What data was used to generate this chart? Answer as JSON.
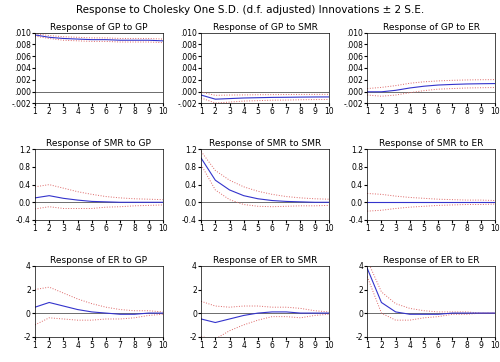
{
  "title": "Response to Cholesky One S.D. (d.f. adjusted) Innovations ± 2 S.E.",
  "titles": [
    [
      "Response of GP to GP",
      "Response of GP to SMR",
      "Response of GP to ER"
    ],
    [
      "Response of SMR to GP",
      "Response of SMR to SMR",
      "Response of SMR to ER"
    ],
    [
      "Response of ER to GP",
      "Response of ER to SMR",
      "Response of ER to ER"
    ]
  ],
  "x": [
    1,
    2,
    3,
    4,
    5,
    6,
    7,
    8,
    9,
    10
  ],
  "gp_to_gp": {
    "y": [
      0.0096,
      0.0092,
      0.009,
      0.0089,
      0.0088,
      0.0088,
      0.0087,
      0.0087,
      0.0087,
      0.0086
    ],
    "yu": [
      0.0098,
      0.0095,
      0.0093,
      0.0092,
      0.0091,
      0.0091,
      0.009,
      0.009,
      0.009,
      0.0089
    ],
    "yl": [
      0.0094,
      0.009,
      0.0087,
      0.0086,
      0.0085,
      0.0085,
      0.0084,
      0.0084,
      0.0084,
      0.0083
    ],
    "ylim": [
      -0.002,
      0.01
    ]
  },
  "gp_to_smr": {
    "y": [
      -0.0006,
      -0.0013,
      -0.0012,
      -0.0011,
      -0.00105,
      -0.001,
      -0.00098,
      -0.00095,
      -0.00093,
      -0.00092
    ],
    "yu": [
      -0.0001,
      -0.00065,
      -0.0006,
      -0.00058,
      -0.00055,
      -0.00053,
      -0.00051,
      -0.0005,
      -0.00049,
      -0.00048
    ],
    "yl": [
      -0.0011,
      -0.00195,
      -0.0018,
      -0.00162,
      -0.00155,
      -0.00147,
      -0.00145,
      -0.0014,
      -0.00137,
      -0.00136
    ],
    "ylim": [
      -0.002,
      0.01
    ]
  },
  "gp_to_er": {
    "y": [
      -5e-05,
      -5e-05,
      0.0002,
      0.0006,
      0.0009,
      0.0011,
      0.0012,
      0.00128,
      0.00132,
      0.00135
    ],
    "yu": [
      0.0005,
      0.0007,
      0.001,
      0.0014,
      0.00165,
      0.0018,
      0.0019,
      0.00196,
      0.002,
      0.00202
    ],
    "yl": [
      -0.0006,
      -0.0008,
      -0.0006,
      -0.0002,
      0.00015,
      0.0004,
      0.0005,
      0.0006,
      0.00064,
      0.00068
    ],
    "ylim": [
      -0.002,
      0.01
    ]
  },
  "smr_to_gp": {
    "y": [
      0.1,
      0.15,
      0.09,
      0.05,
      0.02,
      0.01,
      0.0,
      0.0,
      0.0,
      0.0
    ],
    "yu": [
      0.35,
      0.4,
      0.32,
      0.24,
      0.18,
      0.13,
      0.1,
      0.08,
      0.07,
      0.06
    ],
    "yl": [
      -0.15,
      -0.1,
      -0.14,
      -0.14,
      -0.14,
      -0.11,
      -0.1,
      -0.08,
      -0.07,
      -0.06
    ],
    "ylim": [
      -0.4,
      1.2
    ]
  },
  "smr_to_smr": {
    "y": [
      1.0,
      0.5,
      0.28,
      0.15,
      0.08,
      0.04,
      0.02,
      0.01,
      0.0,
      0.0
    ],
    "yu": [
      1.15,
      0.72,
      0.5,
      0.35,
      0.25,
      0.18,
      0.13,
      0.1,
      0.08,
      0.07
    ],
    "yl": [
      0.85,
      0.28,
      0.06,
      -0.05,
      -0.09,
      -0.1,
      -0.09,
      -0.08,
      -0.08,
      -0.07
    ],
    "ylim": [
      -0.4,
      1.2
    ]
  },
  "smr_to_er": {
    "y": [
      0.0,
      0.0,
      0.0,
      0.0,
      0.0,
      0.0,
      0.0,
      0.0,
      0.0,
      0.0
    ],
    "yu": [
      0.2,
      0.18,
      0.14,
      0.11,
      0.09,
      0.07,
      0.06,
      0.05,
      0.05,
      0.04
    ],
    "yl": [
      -0.2,
      -0.18,
      -0.14,
      -0.11,
      -0.09,
      -0.07,
      -0.06,
      -0.05,
      -0.05,
      -0.04
    ],
    "ylim": [
      -0.4,
      1.2
    ]
  },
  "er_to_gp": {
    "y": [
      0.5,
      0.9,
      0.6,
      0.3,
      0.1,
      0.0,
      -0.1,
      -0.1,
      0.0,
      0.0
    ],
    "yu": [
      2.0,
      2.2,
      1.7,
      1.2,
      0.8,
      0.5,
      0.3,
      0.2,
      0.2,
      0.1
    ],
    "yl": [
      -1.0,
      -0.4,
      -0.5,
      -0.6,
      -0.6,
      -0.5,
      -0.5,
      -0.4,
      -0.2,
      -0.1
    ],
    "ylim": [
      -2,
      4
    ]
  },
  "er_to_smr": {
    "y": [
      -0.5,
      -0.8,
      -0.5,
      -0.2,
      0.0,
      0.1,
      0.1,
      0.0,
      0.0,
      0.0
    ],
    "yu": [
      1.0,
      0.6,
      0.5,
      0.6,
      0.6,
      0.5,
      0.5,
      0.4,
      0.2,
      0.1
    ],
    "yl": [
      -2.0,
      -2.2,
      -1.5,
      -1.0,
      -0.6,
      -0.3,
      -0.3,
      -0.4,
      -0.2,
      -0.1
    ],
    "ylim": [
      -2,
      4
    ]
  },
  "er_to_er": {
    "y": [
      3.8,
      0.9,
      0.1,
      -0.1,
      -0.1,
      -0.1,
      0.0,
      0.0,
      0.0,
      0.0
    ],
    "yu": [
      4.5,
      1.8,
      0.8,
      0.4,
      0.2,
      0.1,
      0.1,
      0.1,
      0.0,
      0.0
    ],
    "yl": [
      3.1,
      0.0,
      -0.6,
      -0.6,
      -0.4,
      -0.3,
      -0.1,
      -0.1,
      0.0,
      0.0
    ],
    "ylim": [
      -2,
      4
    ]
  },
  "line_color": "#3333cc",
  "band_color": "#dd6666",
  "zero_color": "#333333",
  "title_fontsize": 6.5,
  "tick_fontsize": 5.5,
  "main_title_fontsize": 7.5
}
